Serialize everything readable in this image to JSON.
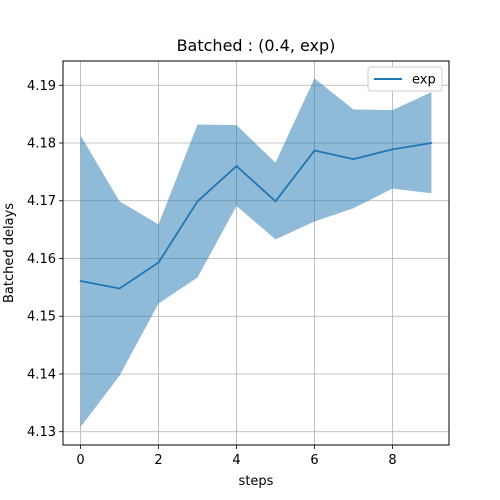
{
  "chart_data": {
    "type": "line",
    "title": "Batched : (0.4, exp)",
    "xlabel": "steps",
    "ylabel": "Batched delays",
    "xlim": [
      -0.45,
      9.45
    ],
    "ylim": [
      4.1277,
      4.1942
    ],
    "x_ticks": [
      0,
      2,
      4,
      6,
      8
    ],
    "y_ticks": [
      4.13,
      4.14,
      4.15,
      4.16,
      4.17,
      4.18,
      4.19
    ],
    "grid": true,
    "legend": {
      "position": "top-right",
      "entries": [
        "exp"
      ]
    },
    "series": [
      {
        "name": "exp",
        "color": "#1f77b4",
        "band_color": "#1f77b4",
        "x": [
          0,
          1,
          2,
          3,
          4,
          5,
          6,
          7,
          8,
          9
        ],
        "values": [
          4.1561,
          4.1548,
          4.1593,
          4.1699,
          4.176,
          4.1699,
          4.1787,
          4.1772,
          4.1789,
          4.18
        ],
        "upper": [
          4.1813,
          4.1699,
          4.1659,
          4.1832,
          4.1831,
          4.1766,
          4.1912,
          4.1858,
          4.1857,
          4.1888
        ],
        "lower": [
          4.1308,
          4.1397,
          4.1522,
          4.1567,
          4.1691,
          4.1633,
          4.1664,
          4.1687,
          4.1721,
          4.1713
        ]
      }
    ]
  }
}
